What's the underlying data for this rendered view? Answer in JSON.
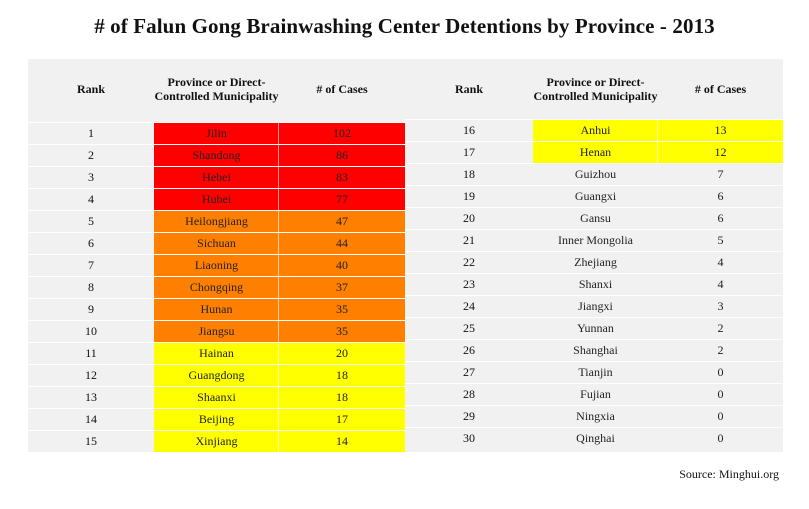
{
  "title": "# of Falun Gong Brainwashing Center Detentions by Province - 2013",
  "source": "Source: Minghui.org",
  "colors": {
    "red": "#ff0000",
    "orange": "#ff7f00",
    "yellow": "#ffff00",
    "table_bg": "#f1f1f1"
  },
  "headers": {
    "rank": "Rank",
    "province": "Province or Direct-Controlled Municipality",
    "cases": "# of Cases"
  },
  "chart_data": {
    "type": "table",
    "columns": [
      "Rank",
      "Province or Direct-Controlled Municipality",
      "# of Cases"
    ],
    "rows": [
      {
        "rank": "1",
        "province": "Jilin",
        "cases": "102",
        "color": "#ff0000"
      },
      {
        "rank": "2",
        "province": "Shandong",
        "cases": "86",
        "color": "#ff0000"
      },
      {
        "rank": "3",
        "province": "Hebei",
        "cases": "83",
        "color": "#ff0000"
      },
      {
        "rank": "4",
        "province": "Hubei",
        "cases": "77",
        "color": "#ff0000"
      },
      {
        "rank": "5",
        "province": "Heilongjiang",
        "cases": "47",
        "color": "#ff7f00"
      },
      {
        "rank": "6",
        "province": "Sichuan",
        "cases": "44",
        "color": "#ff7f00"
      },
      {
        "rank": "7",
        "province": "Liaoning",
        "cases": "40",
        "color": "#ff7f00"
      },
      {
        "rank": "8",
        "province": "Chongqing",
        "cases": "37",
        "color": "#ff7f00"
      },
      {
        "rank": "9",
        "province": "Hunan",
        "cases": "35",
        "color": "#ff7f00"
      },
      {
        "rank": "10",
        "province": "Jiangsu",
        "cases": "35",
        "color": "#ff7f00"
      },
      {
        "rank": "11",
        "province": "Hainan",
        "cases": "20",
        "color": "#ffff00"
      },
      {
        "rank": "12",
        "province": "Guangdong",
        "cases": "18",
        "color": "#ffff00"
      },
      {
        "rank": "13",
        "province": "Shaanxi",
        "cases": "18",
        "color": "#ffff00"
      },
      {
        "rank": "14",
        "province": "Beijing",
        "cases": "17",
        "color": "#ffff00"
      },
      {
        "rank": "15",
        "province": "Xinjiang",
        "cases": "14",
        "color": "#ffff00"
      },
      {
        "rank": "16",
        "province": "Anhui",
        "cases": "13",
        "color": "#ffff00"
      },
      {
        "rank": "17",
        "province": "Henan",
        "cases": "12",
        "color": "#ffff00"
      },
      {
        "rank": "18",
        "province": "Guizhou",
        "cases": "7",
        "color": ""
      },
      {
        "rank": "19",
        "province": "Guangxi",
        "cases": "6",
        "color": ""
      },
      {
        "rank": "20",
        "province": "Gansu",
        "cases": "6",
        "color": ""
      },
      {
        "rank": "21",
        "province": "Inner Mongolia",
        "cases": "5",
        "color": ""
      },
      {
        "rank": "22",
        "province": "Zhejiang",
        "cases": "4",
        "color": ""
      },
      {
        "rank": "23",
        "province": "Shanxi",
        "cases": "4",
        "color": ""
      },
      {
        "rank": "24",
        "province": "Jiangxi",
        "cases": "3",
        "color": ""
      },
      {
        "rank": "25",
        "province": "Yunnan",
        "cases": "2",
        "color": ""
      },
      {
        "rank": "26",
        "province": "Shanghai",
        "cases": "2",
        "color": ""
      },
      {
        "rank": "27",
        "province": "Tianjin",
        "cases": "0",
        "color": ""
      },
      {
        "rank": "28",
        "province": "Fujian",
        "cases": "0",
        "color": ""
      },
      {
        "rank": "29",
        "province": "Ningxia",
        "cases": "0",
        "color": ""
      },
      {
        "rank": "30",
        "province": "Qinghai",
        "cases": "0",
        "color": ""
      }
    ]
  }
}
